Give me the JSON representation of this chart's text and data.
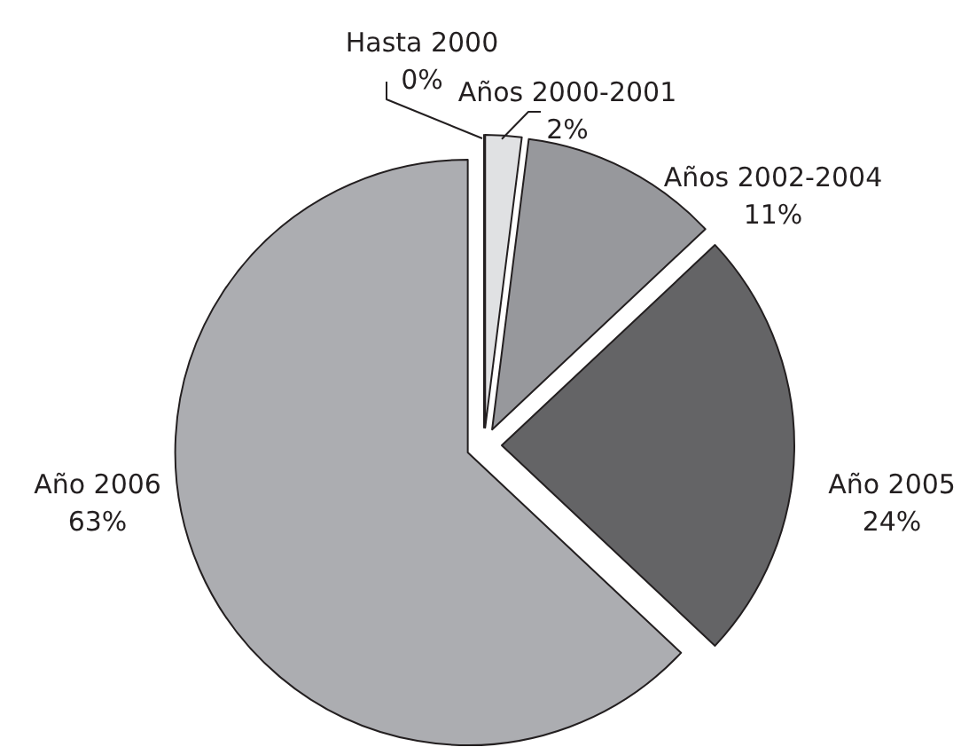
{
  "chart_data": {
    "type": "pie",
    "categories": [
      "Hasta 2000",
      "Años 2000-2001",
      "Años 2002-2004",
      "Año 2005",
      "Año 2006"
    ],
    "values": [
      0,
      2,
      11,
      24,
      63
    ],
    "colors": [
      "#ffffff",
      "#e0e1e3",
      "#97989c",
      "#646466",
      "#acadb1"
    ],
    "value_labels": [
      "0%",
      "2%",
      "11%",
      "24%",
      "63%"
    ]
  }
}
